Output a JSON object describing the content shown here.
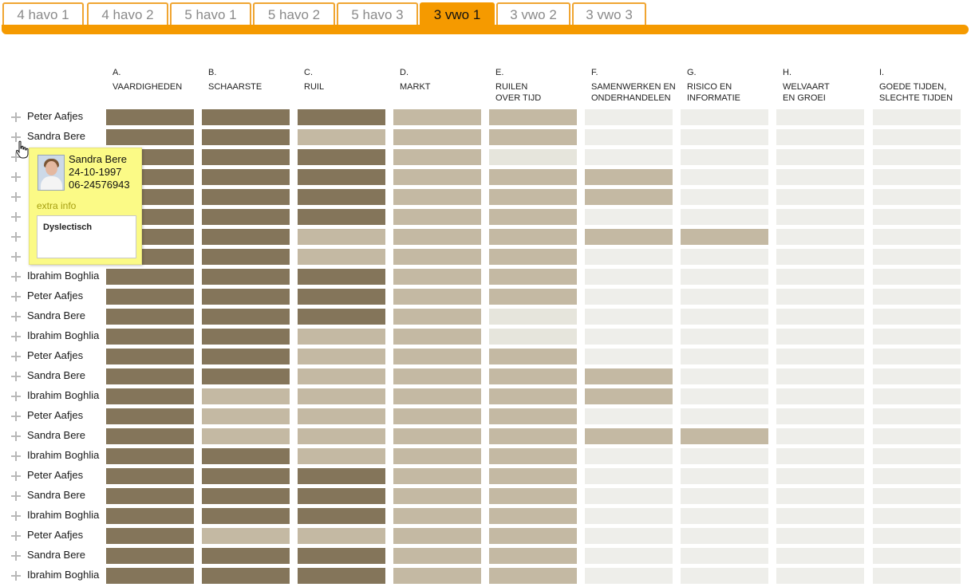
{
  "tabs": [
    {
      "label": "4 havo 1",
      "active": false
    },
    {
      "label": "4 havo 2",
      "active": false
    },
    {
      "label": "5 havo 1",
      "active": false
    },
    {
      "label": "5 havo 2",
      "active": false
    },
    {
      "label": "5 havo 3",
      "active": false
    },
    {
      "label": "3 vwo 1",
      "active": true
    },
    {
      "label": "3 vwo 2",
      "active": false
    },
    {
      "label": "3 vwo 3",
      "active": false
    }
  ],
  "columns": [
    {
      "letter": "A.",
      "title": "VAARDIGHEDEN"
    },
    {
      "letter": "B.",
      "title": "SCHAARSTE"
    },
    {
      "letter": "C.",
      "title": "RUIL"
    },
    {
      "letter": "D.",
      "title": "MARKT"
    },
    {
      "letter": "E.",
      "title": "RUILEN\nOVER TIJD"
    },
    {
      "letter": "F.",
      "title": "SAMENWERKEN EN\nONDERHANDELEN"
    },
    {
      "letter": "G.",
      "title": "RISICO EN\nINFORMATIE"
    },
    {
      "letter": "H.",
      "title": "WELVAART\nEN GROEI"
    },
    {
      "letter": "I.",
      "title": "GOEDE TIJDEN,\nSLECHTE TIJDEN"
    }
  ],
  "levels_legend": {
    "d": "#84755a",
    "m": "#c4b9a3",
    "l": "#e6e5dc",
    "e": "#eeeeea"
  },
  "rows": [
    {
      "name": "Peter Aafjes",
      "levels": [
        "d",
        "d",
        "d",
        "m",
        "m",
        "e",
        "e",
        "e",
        "e"
      ]
    },
    {
      "name": "Sandra Bere",
      "levels": [
        "d",
        "d",
        "m",
        "m",
        "m",
        "e",
        "e",
        "e",
        "e"
      ]
    },
    {
      "name": "",
      "levels": [
        "d",
        "d",
        "d",
        "m",
        "l",
        "e",
        "e",
        "e",
        "e"
      ]
    },
    {
      "name": "",
      "levels": [
        "d",
        "d",
        "d",
        "m",
        "m",
        "m",
        "e",
        "e",
        "e"
      ]
    },
    {
      "name": "",
      "levels": [
        "d",
        "d",
        "d",
        "m",
        "m",
        "m",
        "e",
        "e",
        "e"
      ]
    },
    {
      "name": "",
      "levels": [
        "d",
        "d",
        "d",
        "m",
        "m",
        "e",
        "e",
        "e",
        "e"
      ]
    },
    {
      "name": "",
      "levels": [
        "d",
        "d",
        "m",
        "m",
        "m",
        "m",
        "m",
        "e",
        "e"
      ]
    },
    {
      "name": "",
      "levels": [
        "d",
        "d",
        "m",
        "m",
        "m",
        "e",
        "e",
        "e",
        "e"
      ]
    },
    {
      "name": "Ibrahim Boghlia",
      "levels": [
        "d",
        "d",
        "d",
        "m",
        "m",
        "e",
        "e",
        "e",
        "e"
      ]
    },
    {
      "name": "Peter Aafjes",
      "levels": [
        "d",
        "d",
        "d",
        "m",
        "m",
        "e",
        "e",
        "e",
        "e"
      ]
    },
    {
      "name": "Sandra Bere",
      "levels": [
        "d",
        "d",
        "d",
        "m",
        "l",
        "e",
        "e",
        "e",
        "e"
      ]
    },
    {
      "name": "Ibrahim Boghlia",
      "levels": [
        "d",
        "d",
        "m",
        "m",
        "l",
        "e",
        "e",
        "e",
        "e"
      ]
    },
    {
      "name": "Peter Aafjes",
      "levels": [
        "d",
        "d",
        "m",
        "m",
        "m",
        "e",
        "e",
        "e",
        "e"
      ]
    },
    {
      "name": "Sandra Bere",
      "levels": [
        "d",
        "d",
        "m",
        "m",
        "m",
        "m",
        "e",
        "e",
        "e"
      ]
    },
    {
      "name": "Ibrahim Boghlia",
      "levels": [
        "d",
        "m",
        "m",
        "m",
        "m",
        "m",
        "e",
        "e",
        "e"
      ]
    },
    {
      "name": "Peter Aafjes",
      "levels": [
        "d",
        "m",
        "m",
        "m",
        "m",
        "e",
        "e",
        "e",
        "e"
      ]
    },
    {
      "name": "Sandra Bere",
      "levels": [
        "d",
        "m",
        "m",
        "m",
        "m",
        "m",
        "m",
        "e",
        "e"
      ]
    },
    {
      "name": "Ibrahim Boghlia",
      "levels": [
        "d",
        "d",
        "m",
        "m",
        "m",
        "e",
        "e",
        "e",
        "e"
      ]
    },
    {
      "name": "Peter Aafjes",
      "levels": [
        "d",
        "d",
        "d",
        "m",
        "m",
        "e",
        "e",
        "e",
        "e"
      ]
    },
    {
      "name": "Sandra Bere",
      "levels": [
        "d",
        "d",
        "d",
        "m",
        "m",
        "e",
        "e",
        "e",
        "e"
      ]
    },
    {
      "name": "Ibrahim Boghlia",
      "levels": [
        "d",
        "d",
        "d",
        "m",
        "m",
        "e",
        "e",
        "e",
        "e"
      ]
    },
    {
      "name": "Peter Aafjes",
      "levels": [
        "d",
        "m",
        "m",
        "m",
        "m",
        "e",
        "e",
        "e",
        "e"
      ]
    },
    {
      "name": "Sandra Bere",
      "levels": [
        "d",
        "d",
        "d",
        "m",
        "m",
        "e",
        "e",
        "e",
        "e"
      ]
    },
    {
      "name": "Ibrahim Boghlia",
      "levels": [
        "d",
        "d",
        "d",
        "m",
        "m",
        "e",
        "e",
        "e",
        "e"
      ]
    }
  ],
  "tooltip": {
    "name": "Sandra Bere",
    "birthdate": "24-10-1997",
    "phone": "06-24576943",
    "extra_label": "extra info",
    "note": "Dyslectisch"
  },
  "icons": {
    "expand": "plus-icon",
    "cursor": "hand-cursor-icon"
  }
}
